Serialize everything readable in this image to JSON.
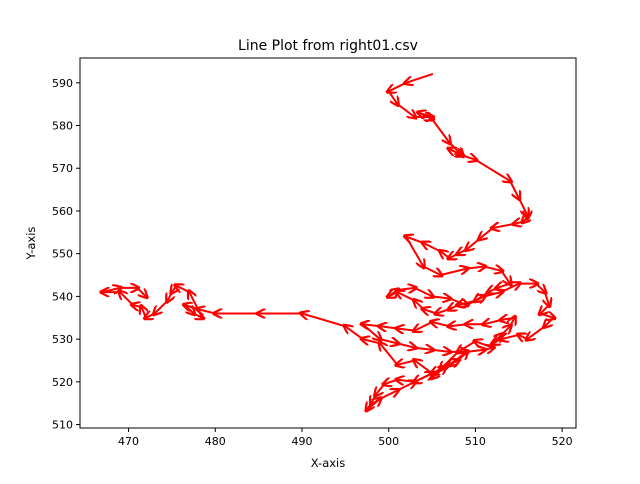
{
  "chart_data": {
    "type": "line",
    "title": "Line Plot from right01.csv",
    "xlabel": "X-axis",
    "ylabel": "Y-axis",
    "xlim": [
      464.4,
      521.6
    ],
    "ylim": [
      509.2,
      595.8
    ],
    "xticks": [
      470,
      480,
      490,
      500,
      510,
      520
    ],
    "yticks": [
      510,
      520,
      530,
      540,
      550,
      560,
      570,
      580,
      590
    ],
    "grid": false,
    "colors": {
      "line": "#1f77b4",
      "arrow": "#ff0000"
    },
    "series": [
      {
        "x": [
          505.0,
          502.0,
          500.0,
          501.0,
          503.0,
          505.0,
          503.5,
          505.0,
          507.0,
          508.5,
          507.0,
          508.5,
          510.0,
          514.0,
          515.0,
          516.0,
          516.0,
          515.5,
          514.5,
          512.0,
          510.5,
          509.0,
          508.0,
          507.0,
          506.0,
          504.0,
          502.0,
          504.0,
          506.0,
          509.0,
          511.0,
          513.0,
          514.0,
          512.5,
          511.5,
          510.0,
          508.0,
          507.0,
          505.5,
          504.0,
          503.0,
          501.0,
          500.0,
          501.0,
          503.0,
          505.0,
          507.0,
          509.0,
          511.0,
          513.0,
          515.0,
          517.0,
          518.0,
          518.5,
          517.5,
          519.0,
          518.0,
          516.0,
          515.0,
          513.0,
          512.0,
          513.0,
          514.0,
          514.5,
          513.0,
          511.0,
          509.0,
          507.0,
          505.0,
          503.0,
          501.0,
          499.0,
          497.0,
          499.0,
          501.0,
          503.0,
          505.0,
          507.0,
          509.0,
          511.0,
          512.0,
          510.0,
          508.0,
          506.0,
          505.0,
          506.5,
          508.0,
          509.0,
          507.0,
          505.0,
          503.0,
          501.0,
          499.5,
          498.5,
          498.0,
          497.5,
          499.0,
          501.0,
          503.0,
          505.0,
          503.0,
          501.0,
          499.0,
          497.0,
          495.0,
          490.0,
          485.0,
          480.0,
          478.0,
          476.5,
          477.5,
          478.5,
          477.0,
          475.5,
          475.0,
          474.5,
          473.0,
          472.0,
          471.5,
          470.5,
          469.0,
          467.0,
          469.0,
          471.0,
          472.0
        ],
        "y": [
          592.0,
          590.0,
          588.0,
          585.0,
          582.0,
          582.0,
          583.0,
          581.5,
          576.0,
          573.0,
          574.5,
          573.0,
          572.0,
          567.0,
          563.0,
          559.0,
          558.5,
          557.5,
          557.0,
          556.0,
          553.5,
          551.0,
          550.0,
          549.0,
          550.5,
          552.5,
          554.0,
          547.0,
          545.0,
          546.5,
          547.0,
          546.0,
          543.0,
          542.0,
          541.0,
          539.0,
          538.0,
          537.0,
          536.0,
          537.0,
          539.0,
          541.0,
          540.0,
          541.5,
          542.0,
          540.0,
          539.5,
          538.0,
          540.0,
          541.0,
          543.0,
          543.0,
          541.0,
          538.0,
          536.0,
          535.0,
          533.0,
          530.0,
          531.0,
          530.0,
          529.0,
          531.0,
          533.0,
          535.0,
          534.5,
          533.5,
          533.5,
          533.0,
          534.0,
          532.0,
          532.5,
          533.0,
          533.5,
          530.0,
          529.0,
          528.0,
          527.5,
          527.0,
          527.0,
          527.5,
          528.0,
          529.5,
          527.0,
          523.0,
          521.0,
          523.5,
          525.0,
          527.0,
          524.0,
          522.0,
          520.0,
          520.5,
          519.5,
          517.0,
          515.0,
          513.5,
          516.0,
          518.0,
          520.0,
          522.0,
          525.0,
          524.0,
          529.0,
          530.0,
          533.0,
          536.0,
          536.0,
          536.0,
          537.0,
          538.0,
          536.0,
          535.0,
          541.0,
          542.5,
          541.0,
          539.0,
          536.0,
          535.0,
          537.5,
          538.0,
          541.0,
          541.0,
          542.0,
          542.0,
          540.0
        ]
      }
    ]
  }
}
